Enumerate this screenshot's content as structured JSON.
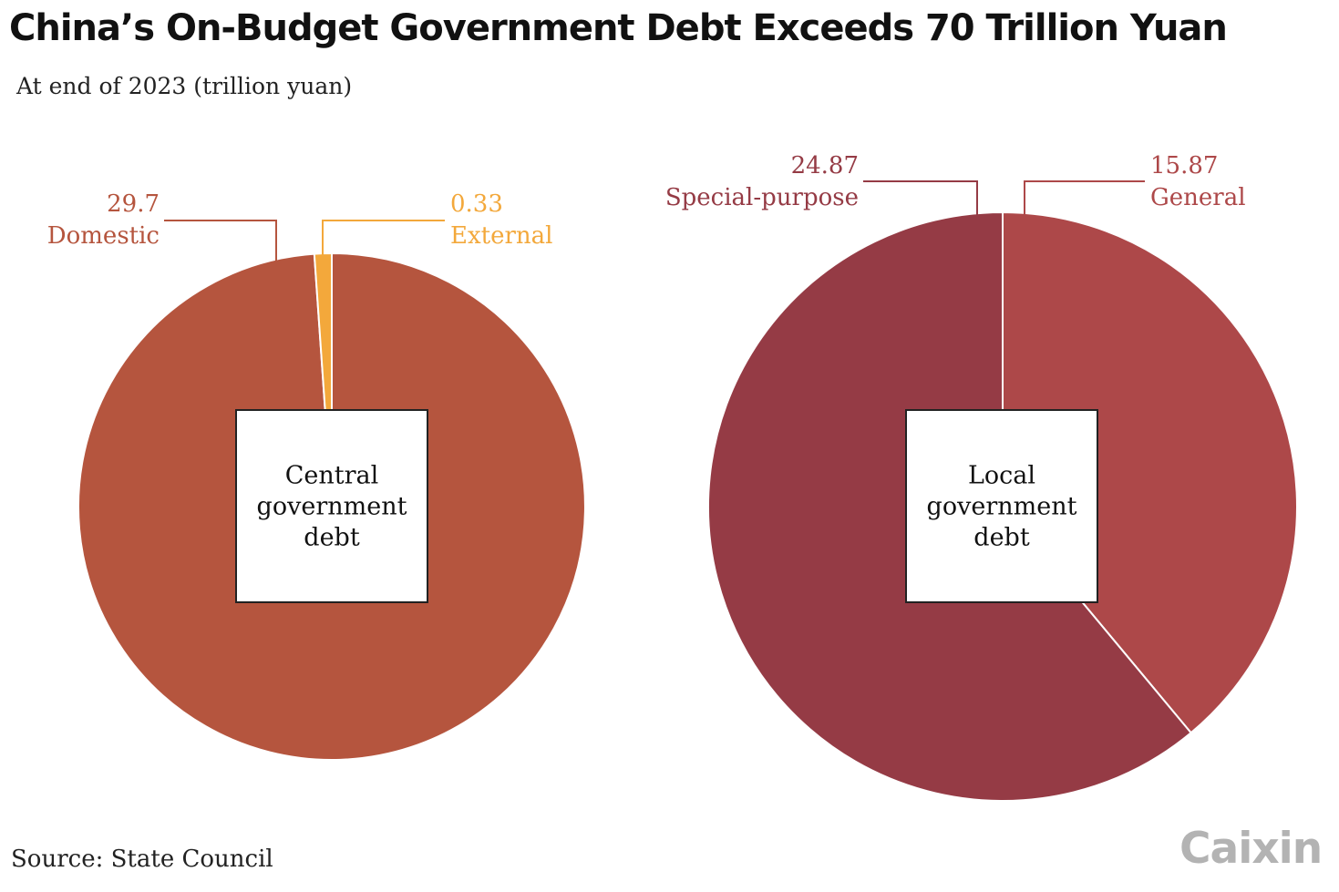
{
  "title": "China’s On-Budget Government Debt Exceeds 70 Trillion Yuan",
  "subtitle": "At end of 2023 (trillion yuan)",
  "source": "Source: State Council",
  "logo": "Caixin",
  "chart_data": [
    {
      "type": "pie",
      "center_label": [
        "Central",
        "government",
        "debt"
      ],
      "slices": [
        {
          "name": "Domestic",
          "value": 29.7,
          "value_label": "29.7",
          "color": "#b5553e"
        },
        {
          "name": "External",
          "value": 0.33,
          "value_label": "0.33",
          "color": "#f3a83b"
        }
      ]
    },
    {
      "type": "pie",
      "center_label": [
        "Local",
        "government",
        "debt"
      ],
      "slices": [
        {
          "name": "General",
          "value": 15.87,
          "value_label": "15.87",
          "color": "#ad4849"
        },
        {
          "name": "Special-purpose",
          "value": 24.87,
          "value_label": "24.87",
          "color": "#953b45"
        }
      ]
    }
  ]
}
